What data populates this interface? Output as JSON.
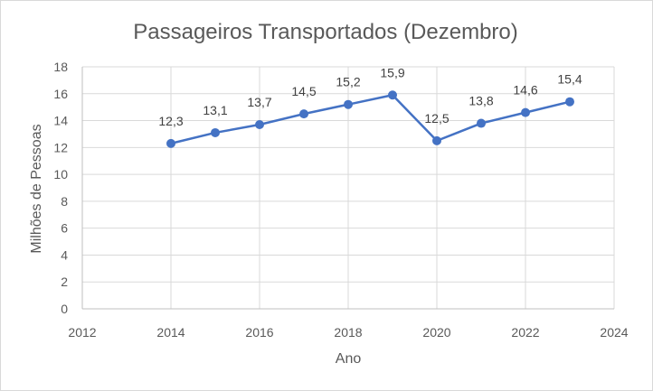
{
  "chart_data": {
    "type": "scatter",
    "title": "Passageiros Transportados (Dezembro)",
    "xlabel": "Ano",
    "ylabel": "Milhões de Pessoas",
    "x": [
      2014,
      2015,
      2016,
      2017,
      2018,
      2019,
      2020,
      2021,
      2022,
      2023
    ],
    "y": [
      12.3,
      13.1,
      13.7,
      14.5,
      15.2,
      15.9,
      12.5,
      13.8,
      14.6,
      15.4
    ],
    "data_labels": [
      "12,3",
      "13,1",
      "13,7",
      "14,5",
      "15,2",
      "15,9",
      "12,5",
      "13,8",
      "14,6",
      "15,4"
    ],
    "xlim": [
      2012,
      2024
    ],
    "ylim": [
      0,
      18
    ],
    "x_ticks": [
      "2012",
      "2014",
      "2016",
      "2018",
      "2020",
      "2022",
      "2024"
    ],
    "y_ticks": [
      "0",
      "2",
      "4",
      "6",
      "8",
      "10",
      "12",
      "14",
      "16",
      "18"
    ],
    "series_color": "#4472c4",
    "grid": true,
    "legend": false
  }
}
